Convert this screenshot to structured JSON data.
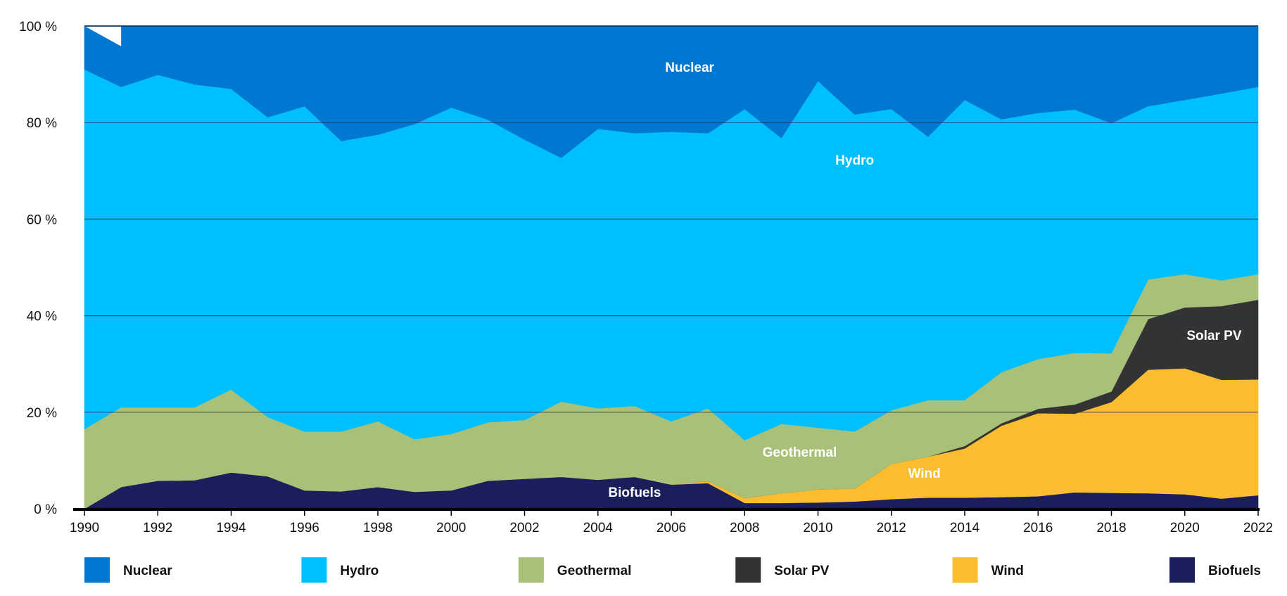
{
  "chart_data": {
    "type": "area",
    "stacked": "percent",
    "x": [
      1990,
      1991,
      1992,
      1993,
      1994,
      1995,
      1996,
      1997,
      1998,
      1999,
      2000,
      2001,
      2002,
      2003,
      2004,
      2005,
      2006,
      2007,
      2008,
      2009,
      2010,
      2011,
      2012,
      2013,
      2014,
      2015,
      2016,
      2017,
      2018,
      2019,
      2020,
      2021,
      2022
    ],
    "series": [
      {
        "name": "Biofuels",
        "color": "#1a1f5c",
        "values": [
          0,
          4.5,
          5.8,
          5.9,
          7.5,
          6.7,
          3.8,
          3.6,
          4.5,
          3.5,
          3.8,
          5.8,
          6.2,
          6.6,
          6.0,
          6.6,
          5.0,
          5.3,
          1.2,
          1.2,
          1.3,
          1.5,
          2.0,
          2.3,
          2.3,
          2.4,
          2.6,
          3.4,
          3.3,
          3.2,
          3.0,
          2.1,
          2.8
        ]
      },
      {
        "name": "Wind",
        "color": "#fbbd2f",
        "values": [
          0,
          0,
          0,
          0,
          0,
          0,
          0,
          0,
          0,
          0,
          0,
          0,
          0,
          0,
          0,
          0,
          0,
          0.4,
          1.0,
          2.0,
          2.7,
          2.7,
          7.3,
          8.5,
          10.2,
          14.8,
          17.2,
          16.3,
          18.8,
          25.6,
          26.1,
          24.6,
          24.0
        ]
      },
      {
        "name": "Solar PV",
        "color": "#333333",
        "values": [
          0,
          0,
          0,
          0,
          0,
          0,
          0,
          0,
          0,
          0,
          0,
          0,
          0,
          0,
          0,
          0,
          0,
          0,
          0,
          0,
          0,
          0,
          0,
          0,
          0.5,
          0.5,
          0.9,
          1.9,
          2.2,
          10.5,
          12.6,
          15.3,
          16.5
        ]
      },
      {
        "name": "Geothermal",
        "color": "#a8c078",
        "values": [
          16.5,
          16.5,
          15.2,
          15.1,
          17.2,
          12.3,
          12.2,
          12.4,
          13.6,
          10.9,
          11.7,
          12.1,
          12.2,
          15.6,
          14.8,
          14.7,
          13.1,
          15.1,
          12.0,
          14.4,
          12.8,
          11.8,
          11.1,
          11.7,
          9.5,
          10.6,
          10.3,
          10.7,
          7.9,
          8.2,
          6.9,
          5.3,
          5.3
        ]
      },
      {
        "name": "Hydro",
        "color": "#00bfff",
        "values": [
          74.5,
          66.4,
          68.9,
          66.9,
          62.3,
          62.1,
          67.4,
          60.2,
          59.4,
          65.3,
          67.6,
          62.7,
          58.1,
          50.5,
          57.9,
          56.5,
          60.0,
          57.0,
          68.6,
          59.2,
          71.8,
          65.7,
          62.4,
          54.6,
          62.2,
          52.4,
          51.0,
          50.4,
          47.7,
          35.9,
          36.1,
          38.7,
          38.8
        ]
      },
      {
        "name": "Nuclear",
        "color": "#0077d0",
        "values": [
          9.0,
          12.6,
          10.1,
          12.1,
          13.0,
          18.9,
          16.6,
          23.8,
          22.5,
          20.3,
          16.9,
          19.4,
          23.5,
          27.3,
          21.3,
          22.2,
          21.9,
          22.2,
          17.2,
          23.2,
          11.4,
          18.3,
          17.2,
          22.9,
          15.3,
          19.3,
          18.0,
          17.3,
          20.1,
          16.6,
          15.3,
          14.0,
          12.6
        ]
      }
    ],
    "blank_gap": {
      "x": [
        1990,
        1991
      ],
      "values": [
        0,
        4.2
      ]
    },
    "area_labels": [
      {
        "series": "Nuclear",
        "text": "Nuclear",
        "x": 2006.5,
        "y": 90.5
      },
      {
        "series": "Hydro",
        "text": "Hydro",
        "x": 2011.0,
        "y": 71.3
      },
      {
        "series": "Solar PV",
        "text": "Solar PV",
        "x": 2020.8,
        "y": 35.0
      },
      {
        "series": "Geothermal",
        "text": "Geothermal",
        "x": 2009.5,
        "y": 10.8
      },
      {
        "series": "Wind",
        "text": "Wind",
        "x": 2012.9,
        "y": 6.4
      },
      {
        "series": "Biofuels",
        "text": "Biofuels",
        "x": 2005.0,
        "y": 2.5
      }
    ],
    "yticks": [
      0,
      20,
      40,
      60,
      80,
      100
    ],
    "ytick_labels": [
      "0 %",
      "20 %",
      "40 %",
      "60 %",
      "80 %",
      "100 %"
    ],
    "xticks": [
      1990,
      1992,
      1994,
      1996,
      1998,
      2000,
      2002,
      2004,
      2006,
      2008,
      2010,
      2012,
      2014,
      2016,
      2018,
      2020,
      2022
    ],
    "xtick_labels": [
      "1990",
      "1992",
      "1994",
      "1996",
      "1998",
      "2000",
      "2002",
      "2004",
      "2006",
      "2008",
      "2010",
      "2012",
      "2014",
      "2016",
      "2018",
      "2020",
      "2022"
    ],
    "xlim": [
      1990,
      2022
    ],
    "ylim": [
      0,
      100
    ],
    "grid": true,
    "legend_position": "bottom",
    "legend": [
      "Nuclear",
      "Hydro",
      "Geothermal",
      "Solar PV",
      "Wind",
      "Biofuels"
    ],
    "title": "",
    "xlabel": "",
    "ylabel": ""
  }
}
